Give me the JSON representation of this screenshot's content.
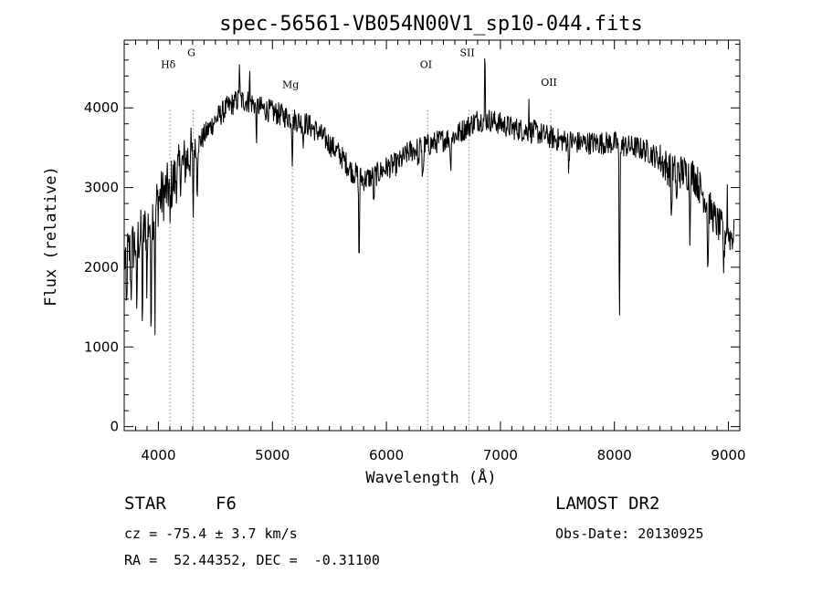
{
  "chart_data": {
    "type": "line",
    "title": "spec-56561-VB054N00V1_sp10-044.fits",
    "xlabel": "Wavelength (Å)",
    "ylabel": "Flux (relative)",
    "xlim": [
      3700,
      9100
    ],
    "ylim": [
      -50,
      4850
    ],
    "x_ticks": [
      4000,
      5000,
      6000,
      7000,
      8000,
      9000
    ],
    "y_ticks": [
      0,
      1000,
      2000,
      3000,
      4000
    ],
    "line_color": "#000000",
    "marker_color": "#cc3333",
    "spectral_lines": [
      {
        "name": "Hδ",
        "wavelength": 4102,
        "label_flux": 4500
      },
      {
        "name": "G",
        "wavelength": 4305,
        "label_flux": 4650
      },
      {
        "name": "Mg",
        "wavelength": 5175,
        "label_flux": 4250
      },
      {
        "name": "OI",
        "wavelength": 6363,
        "label_flux": 4500
      },
      {
        "name": "SII",
        "wavelength": 6725,
        "label_flux": 4650
      },
      {
        "name": "OII",
        "wavelength": 7442,
        "label_flux": 4280
      }
    ],
    "series": [
      {
        "continuum": [
          [
            3700,
            2100
          ],
          [
            3800,
            2300
          ],
          [
            3900,
            2500
          ],
          [
            4000,
            2850
          ],
          [
            4100,
            3000
          ],
          [
            4200,
            3250
          ],
          [
            4300,
            3450
          ],
          [
            4400,
            3650
          ],
          [
            4500,
            3850
          ],
          [
            4600,
            4000
          ],
          [
            4700,
            4100
          ],
          [
            4800,
            4080
          ],
          [
            4900,
            4000
          ],
          [
            5000,
            3950
          ],
          [
            5100,
            3900
          ],
          [
            5200,
            3850
          ],
          [
            5300,
            3800
          ],
          [
            5400,
            3700
          ],
          [
            5500,
            3550
          ],
          [
            5600,
            3400
          ],
          [
            5700,
            3200
          ],
          [
            5800,
            3100
          ],
          [
            5900,
            3150
          ],
          [
            6000,
            3250
          ],
          [
            6100,
            3300
          ],
          [
            6200,
            3450
          ],
          [
            6300,
            3500
          ],
          [
            6400,
            3550
          ],
          [
            6500,
            3600
          ],
          [
            6600,
            3650
          ],
          [
            6700,
            3750
          ],
          [
            6800,
            3850
          ],
          [
            6900,
            3850
          ],
          [
            7000,
            3800
          ],
          [
            7100,
            3750
          ],
          [
            7200,
            3720
          ],
          [
            7300,
            3700
          ],
          [
            7400,
            3650
          ],
          [
            7500,
            3600
          ],
          [
            7600,
            3580
          ],
          [
            7700,
            3560
          ],
          [
            7800,
            3560
          ],
          [
            7900,
            3560
          ],
          [
            8000,
            3560
          ],
          [
            8100,
            3520
          ],
          [
            8200,
            3500
          ],
          [
            8300,
            3450
          ],
          [
            8400,
            3350
          ],
          [
            8500,
            3200
          ],
          [
            8600,
            3200
          ],
          [
            8700,
            3150
          ],
          [
            8800,
            2850
          ],
          [
            8900,
            2550
          ],
          [
            9000,
            2400
          ],
          [
            9050,
            2400
          ]
        ],
        "absorption_features": [
          [
            3720,
            900
          ],
          [
            3760,
            600
          ],
          [
            3810,
            1100
          ],
          [
            3860,
            1200
          ],
          [
            3900,
            800
          ],
          [
            3935,
            1500
          ],
          [
            3970,
            1400
          ],
          [
            4102,
            500
          ],
          [
            4305,
            900
          ],
          [
            4340,
            700
          ],
          [
            4860,
            450
          ],
          [
            5175,
            550
          ],
          [
            5270,
            300
          ],
          [
            5760,
            1250
          ],
          [
            5890,
            400
          ],
          [
            6280,
            300
          ],
          [
            6320,
            1350
          ],
          [
            6563,
            450
          ],
          [
            7600,
            350
          ],
          [
            8045,
            2550
          ],
          [
            8500,
            700
          ],
          [
            8545,
            500
          ],
          [
            8662,
            750
          ],
          [
            8820,
            1050
          ],
          [
            8960,
            600
          ]
        ],
        "emission_spikes": [
          [
            6320,
            1100
          ],
          [
            6864,
            1000
          ],
          [
            4710,
            500
          ],
          [
            4800,
            450
          ],
          [
            7250,
            400
          ],
          [
            8990,
            550
          ]
        ]
      }
    ]
  },
  "info": {
    "object_class": "STAR",
    "subclass": "F6",
    "survey": "LAMOST DR2",
    "redshift": "cz = -75.4 ± 3.7 km/s",
    "obs_date": "Obs-Date: 20130925",
    "coords": "RA =  52.44352, DEC =  -0.31100"
  }
}
